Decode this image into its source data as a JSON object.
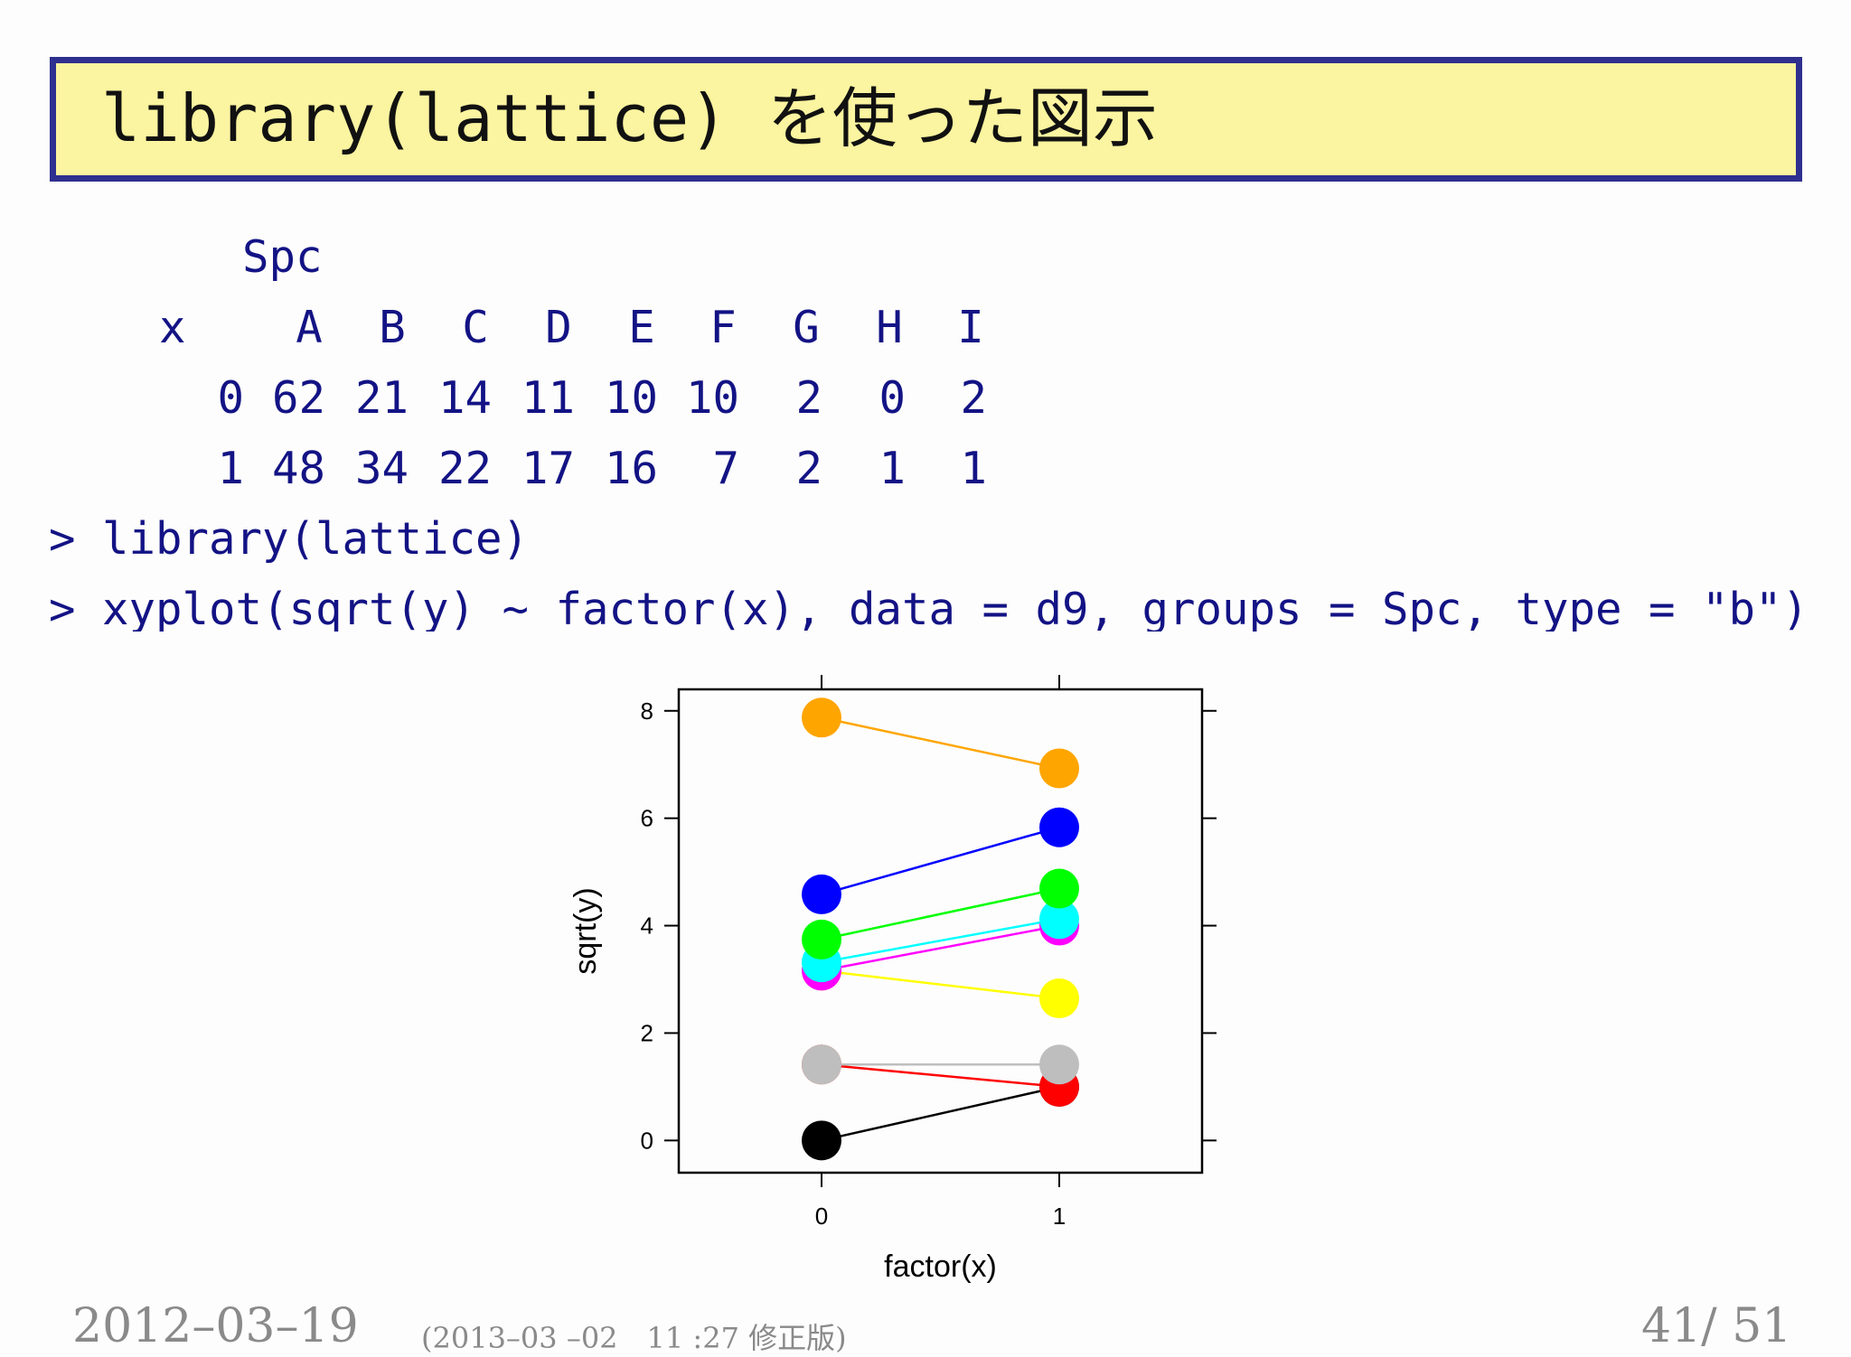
{
  "slide": {
    "title": "library(lattice) を使った図示"
  },
  "table": {
    "group_label": "Spc",
    "row_label": "x",
    "columns": [
      "A",
      "B",
      "C",
      "D",
      "E",
      "F",
      "G",
      "H",
      "I"
    ],
    "rows": [
      {
        "x": "0",
        "values": [
          "62",
          "21",
          "14",
          "11",
          "10",
          "10",
          "2",
          "0",
          "2"
        ]
      },
      {
        "x": "1",
        "values": [
          "48",
          "34",
          "22",
          "17",
          "16",
          "7",
          "2",
          "1",
          "1"
        ]
      }
    ]
  },
  "code": {
    "line1": "> library(lattice)",
    "line2": "> xyplot(sqrt(y) ~ factor(x), data = d9, groups = Spc, type = \"b\")"
  },
  "chart_data": {
    "type": "line",
    "xlabel": "factor(x)",
    "ylabel": "sqrt(y)",
    "categories": [
      "0",
      "1"
    ],
    "ylim": [
      -0.6,
      8.4
    ],
    "yticks": [
      "0",
      "2",
      "4",
      "6",
      "8"
    ],
    "series": [
      {
        "values": [
          7.874,
          6.928
        ],
        "color": "#ffa500"
      },
      {
        "values": [
          4.583,
          5.831
        ],
        "color": "#0000ff"
      },
      {
        "values": [
          3.742,
          4.69
        ],
        "color": "#00ff00"
      },
      {
        "values": [
          3.317,
          4.123
        ],
        "color": "#00ffff"
      },
      {
        "values": [
          3.162,
          4.0
        ],
        "color": "#ff00ff"
      },
      {
        "values": [
          3.162,
          2.646
        ],
        "color": "#ffff00"
      },
      {
        "values": [
          1.414,
          1.414
        ],
        "color": "#bebebe"
      },
      {
        "values": [
          1.414,
          1.0
        ],
        "color": "#ff0000"
      },
      {
        "values": [
          0.0,
          1.0
        ],
        "color": "#000000"
      }
    ]
  },
  "footer": {
    "date": "2012–03–19",
    "revision": "(2013–03 –02　11 :27 修正版)",
    "page": "41/ 51"
  }
}
